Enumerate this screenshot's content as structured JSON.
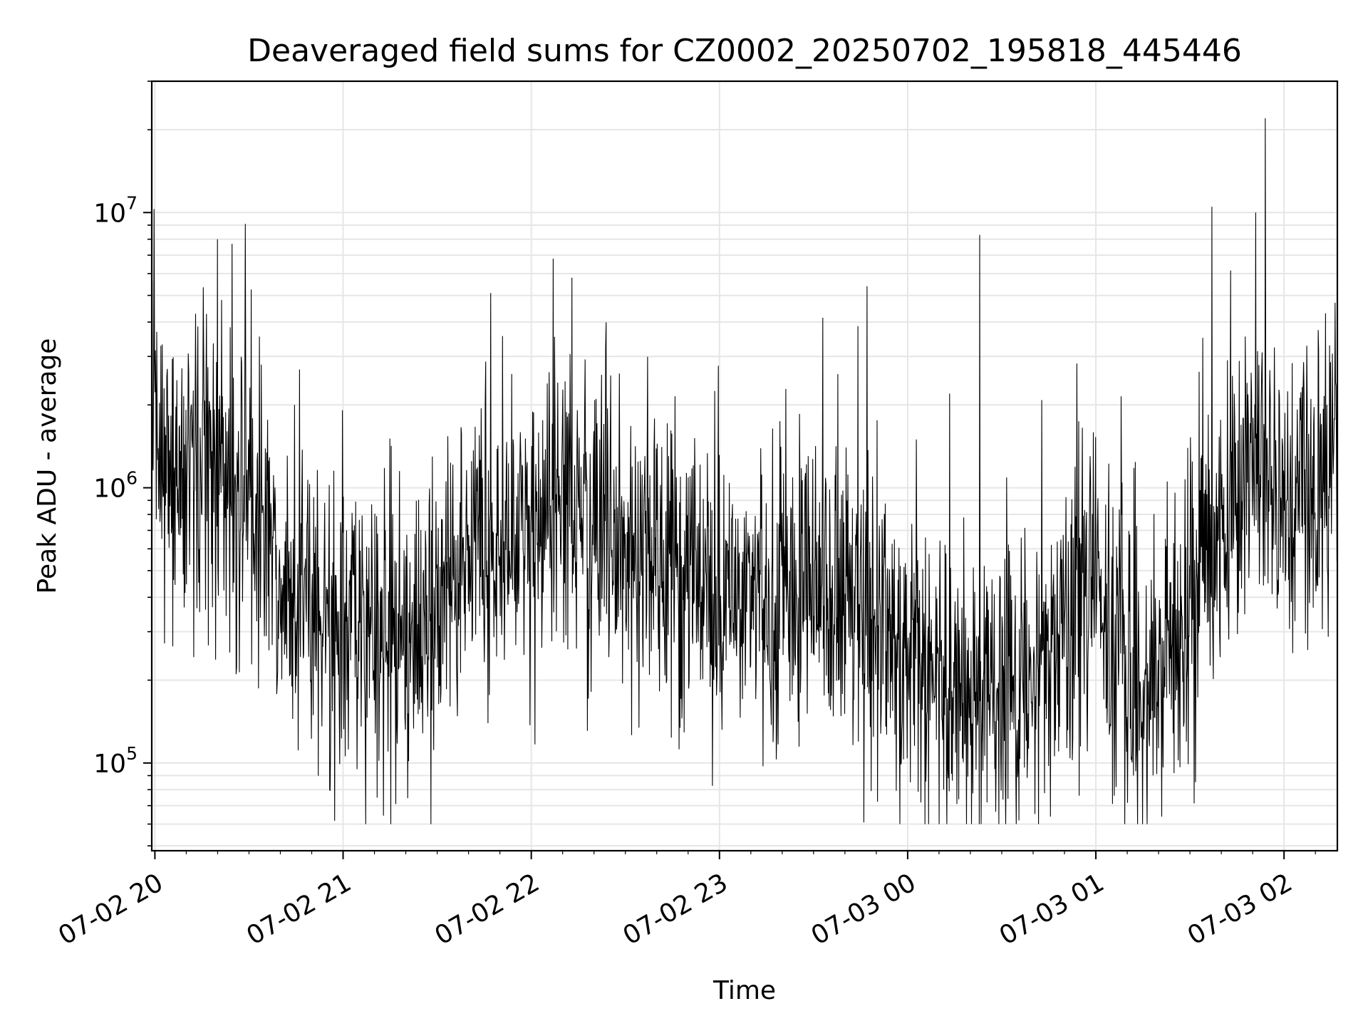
{
  "chart_data": {
    "type": "line",
    "title": "Deaveraged field sums for CZ0002_20250702_195818_445446",
    "xlabel": "Time",
    "ylabel": "Peak ADU - average",
    "y_scale": "log",
    "ylim": [
      48000,
      30000000
    ],
    "xlim": [
      "07-02 19:59",
      "07-03 02:17"
    ],
    "x_ticks": [
      {
        "label": "07-02 20",
        "time": "07-02 20:00"
      },
      {
        "label": "07-02 21",
        "time": "07-02 21:00"
      },
      {
        "label": "07-02 22",
        "time": "07-02 22:00"
      },
      {
        "label": "07-02 23",
        "time": "07-02 23:00"
      },
      {
        "label": "07-03 00",
        "time": "07-03 00:00"
      },
      {
        "label": "07-03 01",
        "time": "07-03 01:00"
      },
      {
        "label": "07-03 02",
        "time": "07-03 02:00"
      }
    ],
    "y_ticks": [
      {
        "base": "10",
        "exp": "5",
        "value": 100000
      },
      {
        "base": "10",
        "exp": "6",
        "value": 1000000
      },
      {
        "base": "10",
        "exp": "7",
        "value": 10000000
      }
    ],
    "grid": true,
    "line_color": "#000000",
    "series": [
      {
        "x": [
          "07-02 19:59",
          "07-02 20:05",
          "07-02 20:10",
          "07-02 20:15",
          "07-02 20:20",
          "07-02 20:25",
          "07-02 20:30",
          "07-02 20:35",
          "07-02 20:40",
          "07-02 20:45",
          "07-02 20:50",
          "07-02 20:55",
          "07-02 21:00",
          "07-02 21:05",
          "07-02 21:10",
          "07-02 21:15",
          "07-02 21:20",
          "07-02 21:25",
          "07-02 21:30",
          "07-02 21:35",
          "07-02 21:40",
          "07-02 21:45",
          "07-02 21:50",
          "07-02 21:55",
          "07-02 22:00",
          "07-02 22:05",
          "07-02 22:10",
          "07-02 22:15",
          "07-02 22:20",
          "07-02 22:25",
          "07-02 22:30",
          "07-02 22:35",
          "07-02 22:40",
          "07-02 22:45",
          "07-02 22:50",
          "07-02 22:55",
          "07-02 23:00",
          "07-02 23:05",
          "07-02 23:10",
          "07-02 23:15",
          "07-02 23:20",
          "07-02 23:25",
          "07-02 23:30",
          "07-02 23:35",
          "07-02 23:40",
          "07-02 23:45",
          "07-02 23:50",
          "07-02 23:55",
          "07-03 00:00",
          "07-03 00:05",
          "07-03 00:10",
          "07-03 00:15",
          "07-03 00:20",
          "07-03 00:25",
          "07-03 00:30",
          "07-03 00:35",
          "07-03 00:40",
          "07-03 00:45",
          "07-03 00:50",
          "07-03 00:55",
          "07-03 01:00",
          "07-03 01:05",
          "07-03 01:10",
          "07-03 01:15",
          "07-03 01:20",
          "07-03 01:25",
          "07-03 01:30",
          "07-03 01:35",
          "07-03 01:40",
          "07-03 01:45",
          "07-03 01:50",
          "07-03 01:55",
          "07-03 02:00",
          "07-03 02:05",
          "07-03 02:10",
          "07-03 02:15"
        ],
        "y": [
          1300000,
          1100000,
          1000000,
          1600000,
          1200000,
          1000000,
          900000,
          700000,
          550000,
          420000,
          330000,
          300000,
          350000,
          380000,
          320000,
          270000,
          290000,
          330000,
          380000,
          450000,
          600000,
          620000,
          580000,
          640000,
          650000,
          700000,
          720000,
          800000,
          780000,
          700000,
          620000,
          600000,
          560000,
          520000,
          470000,
          430000,
          400000,
          380000,
          360000,
          390000,
          420000,
          450000,
          480000,
          460000,
          420000,
          380000,
          330000,
          290000,
          250000,
          230000,
          210000,
          200000,
          190000,
          180000,
          175000,
          170000,
          180000,
          220000,
          300000,
          380000,
          400000,
          280000,
          200000,
          180000,
          200000,
          250000,
          330000,
          500000,
          800000,
          1100000,
          1300000,
          1250000,
          1000000,
          850000,
          900000,
          950000
        ],
        "notable_spikes": [
          {
            "x": "07-02 20:20",
            "y": 8000000
          },
          {
            "x": "07-02 21:47",
            "y": 5100000
          },
          {
            "x": "07-02 22:07",
            "y": 6800000
          },
          {
            "x": "07-02 22:13",
            "y": 5800000
          },
          {
            "x": "07-02 23:47",
            "y": 5400000
          },
          {
            "x": "07-03 00:23",
            "y": 8300000
          },
          {
            "x": "07-03 01:37",
            "y": 10500000
          },
          {
            "x": "07-03 01:51",
            "y": 10000000
          },
          {
            "x": "07-03 01:54",
            "y": 22000000
          }
        ]
      }
    ]
  }
}
